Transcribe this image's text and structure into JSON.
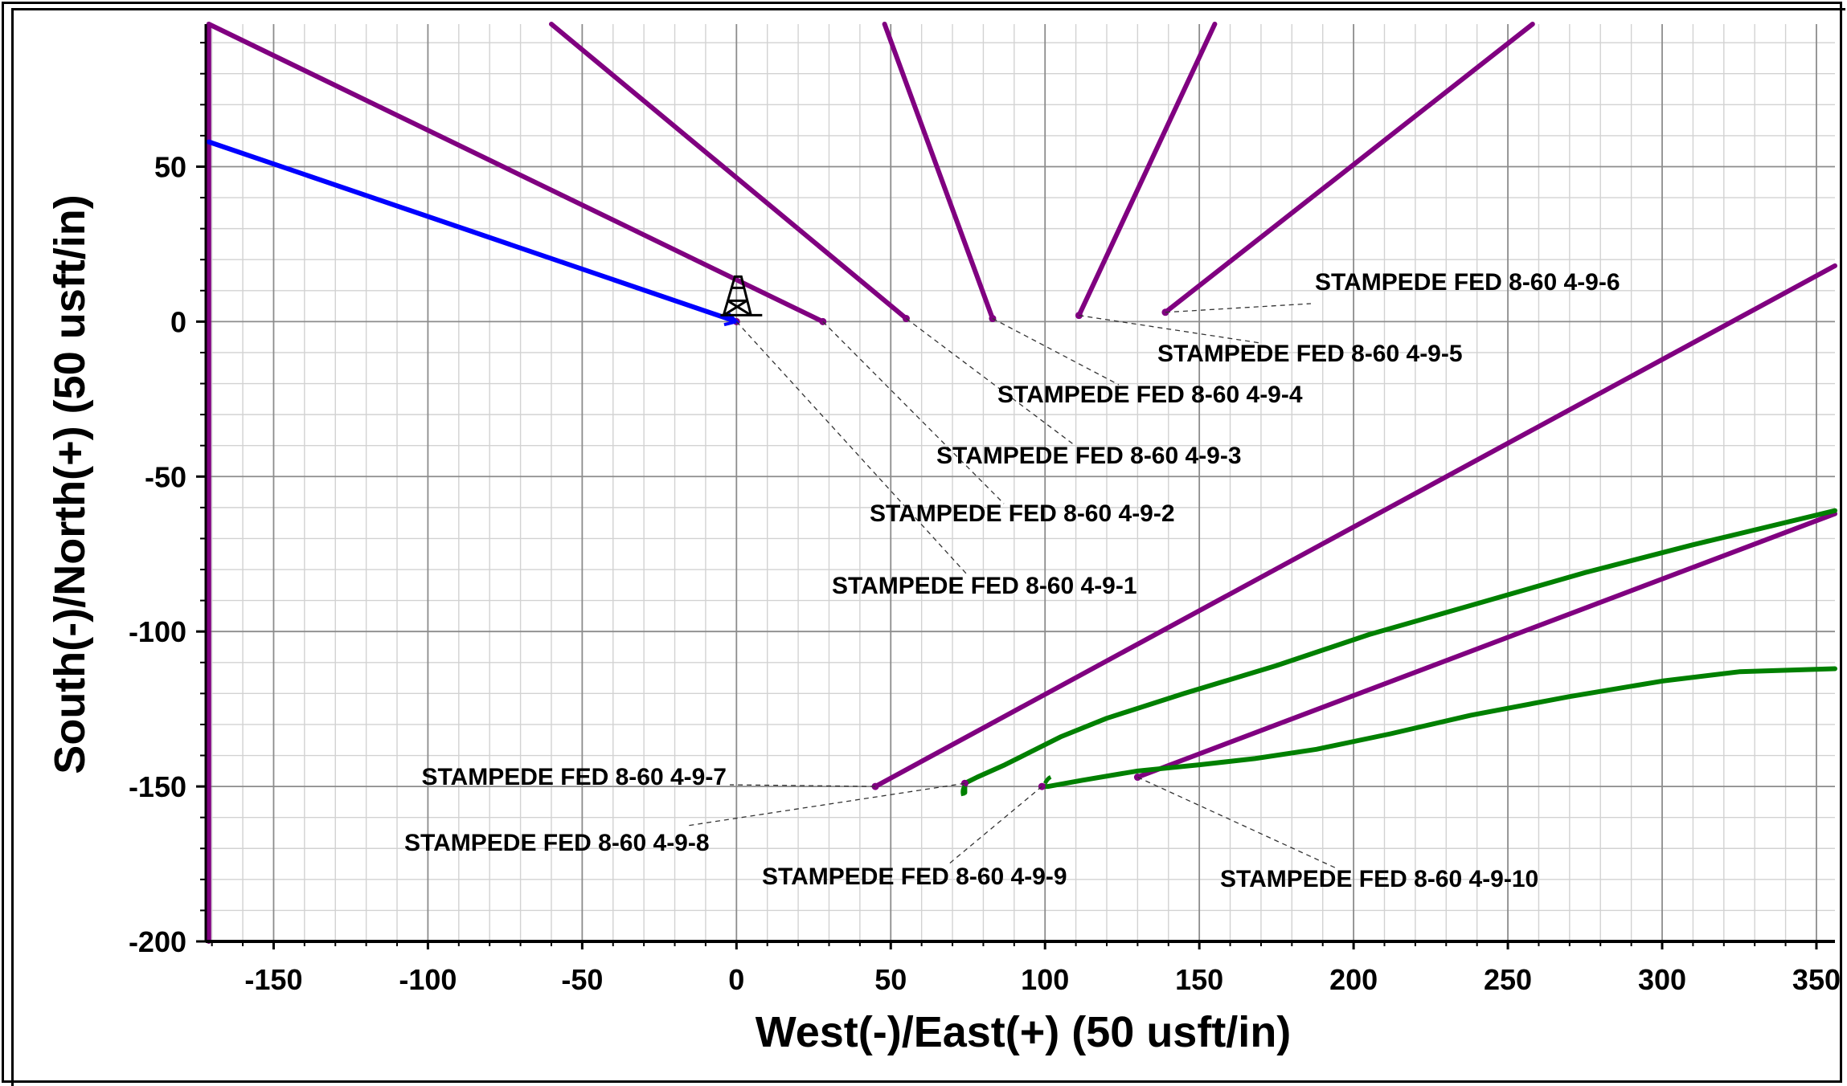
{
  "chart_data": {
    "type": "line",
    "xlabel": "West(-)/East(+) (50 usft/in)",
    "ylabel": "South(-)/North(+) (50 usft/in)",
    "xlim": [
      -172,
      356
    ],
    "ylim": [
      -200,
      96
    ],
    "x_ticks": [
      -150,
      -100,
      -50,
      0,
      50,
      100,
      150,
      200,
      250,
      300,
      350
    ],
    "y_ticks": [
      50,
      0,
      -50,
      -100,
      -150,
      -200
    ],
    "x_tick_labels": [
      "-150",
      "-100",
      "-50",
      "0",
      "50",
      "100",
      "150",
      "200",
      "250",
      "300",
      "350"
    ],
    "y_tick_labels": [
      "50",
      "0",
      "-50",
      "-100",
      "-150",
      "-200"
    ],
    "grid": true,
    "series": [
      {
        "color": "#800080",
        "points": [
          [
            -171,
            -200
          ],
          [
            -171,
            96
          ]
        ]
      },
      {
        "color": "#800080",
        "points": [
          [
            28,
            0
          ],
          [
            -171,
            96
          ]
        ]
      },
      {
        "color": "#800080",
        "points": [
          [
            55,
            1
          ],
          [
            -60,
            96
          ]
        ]
      },
      {
        "color": "#800080",
        "points": [
          [
            83,
            1
          ],
          [
            48,
            96
          ]
        ]
      },
      {
        "color": "#800080",
        "points": [
          [
            111,
            2
          ],
          [
            155,
            96
          ]
        ]
      },
      {
        "color": "#800080",
        "points": [
          [
            139,
            3
          ],
          [
            258,
            96
          ]
        ]
      },
      {
        "color": "#800080",
        "points": [
          [
            45,
            -150
          ],
          [
            356,
            18
          ]
        ]
      },
      {
        "color": "#800080",
        "points": [
          [
            130,
            -147
          ],
          [
            356,
            -62
          ]
        ]
      },
      {
        "color": "#0000ff",
        "points": [
          [
            -171,
            58
          ],
          [
            0,
            0
          ]
        ]
      },
      {
        "color": "#008000",
        "points": [
          [
            74,
            -152
          ],
          [
            74,
            -149
          ],
          [
            78,
            -147
          ],
          [
            87,
            -143
          ],
          [
            95,
            -139
          ],
          [
            105,
            -134
          ],
          [
            120,
            -128
          ],
          [
            145,
            -120
          ],
          [
            175,
            -111
          ],
          [
            205,
            -101
          ],
          [
            240,
            -91
          ],
          [
            275,
            -81
          ],
          [
            310,
            -72
          ],
          [
            356,
            -61
          ]
        ]
      },
      {
        "color": "#008000",
        "points": [
          [
            99,
            -150
          ],
          [
            101,
            -150
          ],
          [
            112,
            -148
          ],
          [
            130,
            -145
          ],
          [
            150,
            -143
          ],
          [
            168,
            -141
          ],
          [
            188,
            -138
          ],
          [
            212,
            -133
          ],
          [
            238,
            -127
          ],
          [
            270,
            -121
          ],
          [
            300,
            -116
          ],
          [
            325,
            -113
          ],
          [
            356,
            -112
          ]
        ]
      }
    ],
    "annotations": [
      {
        "text": "STAMPEDE FED 8-60 4-9-1",
        "x": 0,
        "y": 0
      },
      {
        "text": "STAMPEDE FED 8-60 4-9-2",
        "x": 28,
        "y": 0
      },
      {
        "text": "STAMPEDE FED 8-60 4-9-3",
        "x": 55,
        "y": 1
      },
      {
        "text": "STAMPEDE FED 8-60 4-9-4",
        "x": 83,
        "y": 1
      },
      {
        "text": "STAMPEDE FED 8-60 4-9-5",
        "x": 111,
        "y": 2
      },
      {
        "text": "STAMPEDE FED 8-60 4-9-6",
        "x": 139,
        "y": 3
      },
      {
        "text": "STAMPEDE FED 8-60 4-9-7",
        "x": 45,
        "y": -150
      },
      {
        "text": "STAMPEDE FED 8-60 4-9-8",
        "x": 74,
        "y": -149
      },
      {
        "text": "STAMPEDE FED 8-60 4-9-9",
        "x": 99,
        "y": -150
      },
      {
        "text": "STAMPEDE FED 8-60 4-9-10",
        "x": 130,
        "y": -147
      }
    ],
    "rig_symbol": {
      "icon": "drilling-rig-icon",
      "x": 0,
      "y": 0
    }
  }
}
